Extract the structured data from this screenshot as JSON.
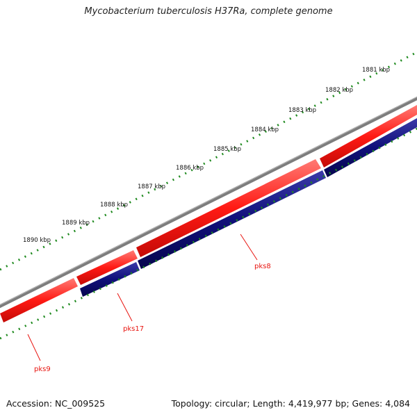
{
  "title": "Mycobacterium tuberculosis H37Ra, complete genome",
  "footer": {
    "accession": "Accession: NC_009525",
    "summary": "Topology: circular; Length: 4,419,977 bp; Genes: 4,084"
  },
  "scale_ticks": [
    "1881 kbp",
    "1882 kbp",
    "1883 kbp",
    "1884 kbp",
    "1885 kbp",
    "1886 kbp",
    "1887 kbp",
    "1888 kbp",
    "1889 kbp",
    "1890 kbp"
  ],
  "genes": [
    {
      "name": "pks9",
      "strand": "+"
    },
    {
      "name": "pks17",
      "strand": "+"
    },
    {
      "name": "pks8",
      "strand": "+"
    },
    {
      "name": "pks8",
      "strand": "-"
    }
  ],
  "gene_labels": [
    "pks9",
    "pks17",
    "pks8"
  ],
  "colors": {
    "backbone": "#7d7d7d",
    "forward_gene": "#ff1a14",
    "reverse_gene": "#10107a",
    "ticks": "#1f8a1f",
    "label": "#e8140f"
  }
}
